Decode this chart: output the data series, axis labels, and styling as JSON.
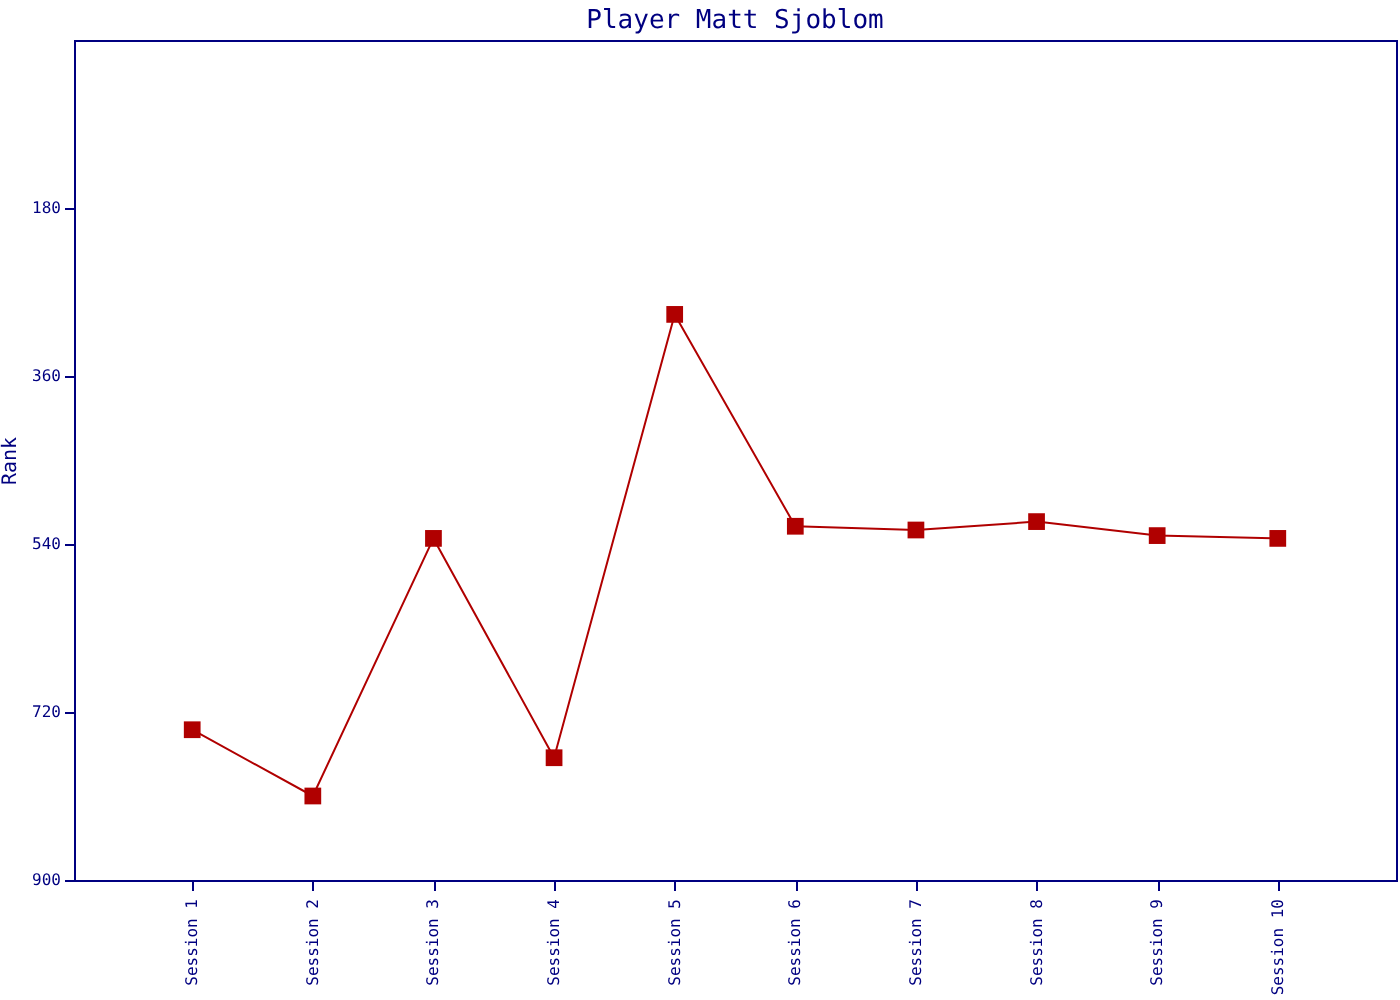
{
  "chart_data": {
    "type": "line",
    "title": "Player Matt Sjoblom",
    "ylabel": "Rank",
    "categories": [
      "Session 1",
      "Session 2",
      "Session 3",
      "Session 4",
      "Session 5",
      "Session 6",
      "Session 7",
      "Session 8",
      "Session 9",
      "Session 10"
    ],
    "series": [
      {
        "color": "#b00000",
        "values": [
          739,
          810,
          534,
          769,
          294,
          521,
          525,
          516,
          531,
          534
        ]
      }
    ],
    "ylim": [
      900,
      0
    ],
    "yticks": [
      180,
      360,
      540,
      720,
      900
    ],
    "grid": false,
    "legend": false,
    "marker": "square",
    "line_style": "solid"
  }
}
